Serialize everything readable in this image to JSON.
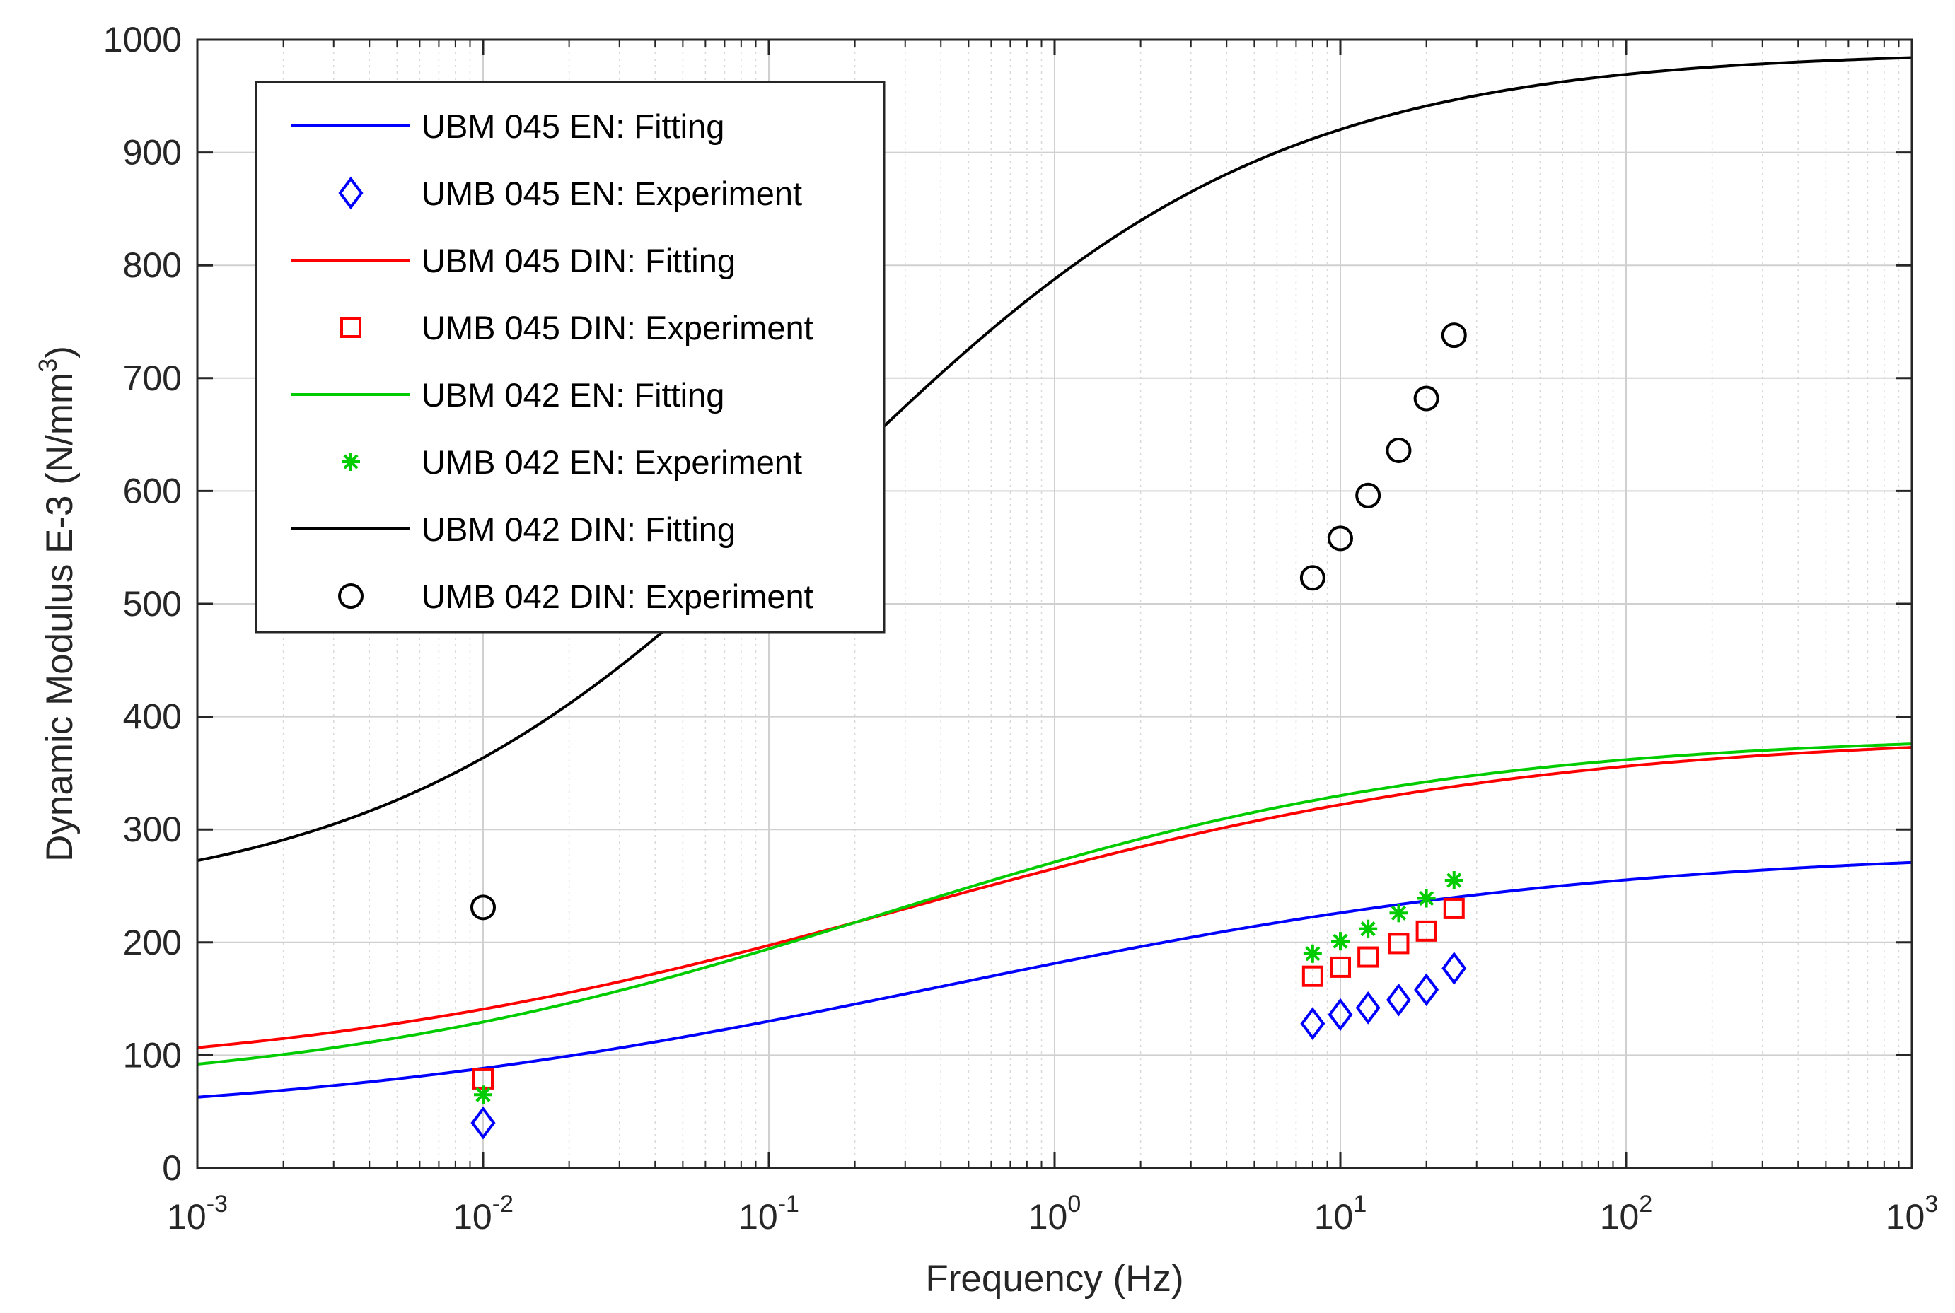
{
  "chart_data": {
    "type": "line",
    "title": "",
    "xlabel": "Frequency (Hz)",
    "ylabel": {
      "prefix": "Dynamic Modulus E-3 (N/mm",
      "superscript": "3",
      "suffix": ")"
    },
    "xscale": "log",
    "xlim": [
      0.001,
      1000
    ],
    "ylim": [
      0,
      1000
    ],
    "grid": true,
    "minor_grid": true,
    "legend_location": "top-left",
    "x_ticks": [
      {
        "base": "10",
        "exp": "-3",
        "value": 0.001
      },
      {
        "base": "10",
        "exp": "-2",
        "value": 0.01
      },
      {
        "base": "10",
        "exp": "-1",
        "value": 0.1
      },
      {
        "base": "10",
        "exp": "0",
        "value": 1
      },
      {
        "base": "10",
        "exp": "1",
        "value": 10
      },
      {
        "base": "10",
        "exp": "2",
        "value": 100
      },
      {
        "base": "10",
        "exp": "3",
        "value": 1000
      }
    ],
    "y_ticks": [
      "0",
      "100",
      "200",
      "300",
      "400",
      "500",
      "600",
      "700",
      "800",
      "900",
      "1000"
    ],
    "experiment_x": [
      0.01,
      8,
      10,
      12.5,
      16,
      20,
      25
    ],
    "series": [
      {
        "name": "UBM 045 EN: Fitting",
        "kind": "line",
        "color": "#0000ff",
        "model": {
          "delta": 38.8,
          "alpha": 245.0,
          "beta": -0.33,
          "gamma": -0.85
        }
      },
      {
        "name": "UMB 045 EN: Experiment",
        "kind": "marker",
        "marker": "diamond",
        "color": "#0000ff",
        "values": [
          40,
          128,
          136,
          142,
          149,
          158,
          177
        ]
      },
      {
        "name": "UBM 045 DIN: Fitting",
        "kind": "line",
        "color": "#ff0000",
        "model": {
          "delta": 77.4,
          "alpha": 308.0,
          "beta": -0.45,
          "gamma": -0.9
        }
      },
      {
        "name": "UMB 045 DIN: Experiment",
        "kind": "marker",
        "marker": "square",
        "color": "#ff0000",
        "values": [
          79,
          170,
          178,
          187,
          199,
          210,
          230
        ]
      },
      {
        "name": "UBM 042 EN: Fitting",
        "kind": "line",
        "color": "#00cc00",
        "model": {
          "delta": 63.9,
          "alpha": 321.0,
          "beta": -0.6,
          "gamma": -0.98
        }
      },
      {
        "name": "UMB 042 EN: Experiment",
        "kind": "marker",
        "marker": "asterisk",
        "color": "#00cc00",
        "values": [
          65,
          190,
          201,
          212,
          226,
          239,
          255
        ]
      },
      {
        "name": "UBM 042 DIN: Fitting",
        "kind": "line",
        "color": "#000000",
        "model": {
          "delta": 229.9,
          "alpha": 760.0,
          "beta": -1.015,
          "gamma": -1.28
        }
      },
      {
        "name": "UMB 042 DIN: Experiment",
        "kind": "marker",
        "marker": "circle",
        "color": "#000000",
        "values": [
          231,
          523,
          558,
          596,
          636,
          682,
          738
        ]
      }
    ]
  }
}
